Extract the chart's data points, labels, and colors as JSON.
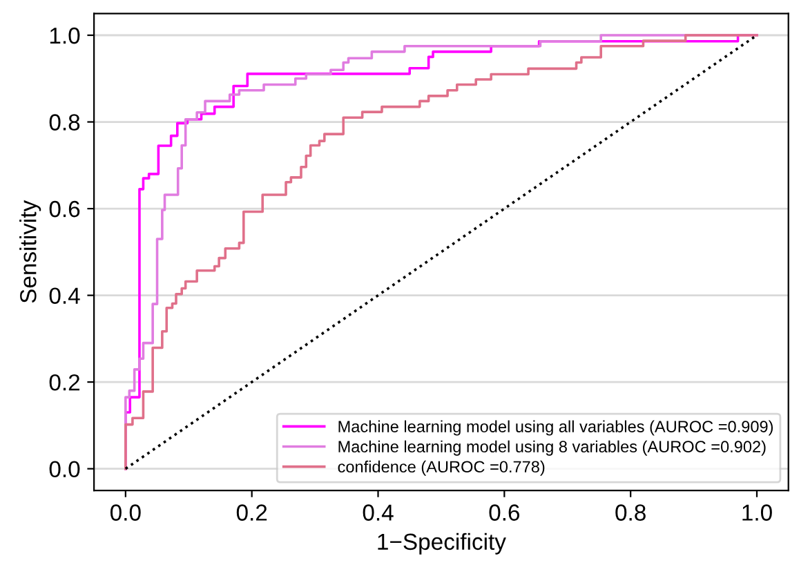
{
  "chart_data": {
    "type": "step",
    "xlabel": "1−Specificity",
    "ylabel": "Sensitivity",
    "xlim": [
      -0.05,
      1.05
    ],
    "ylim": [
      -0.05,
      1.05
    ],
    "xticks": [
      {
        "value": 0,
        "label": "0.0"
      },
      0.2,
      0.4,
      0.6,
      0.8,
      {
        "value": 1,
        "label": "1.0"
      }
    ],
    "yticks": [
      {
        "value": 0,
        "label": "0.0"
      },
      0.2,
      0.4,
      0.6,
      0.8,
      {
        "value": 1,
        "label": "1.0"
      }
    ],
    "grid": "y",
    "legend": "bottom right",
    "series": [
      {
        "name": "Machine learning model using all variables (AUROC =0.909)",
        "color": "#ff00ff",
        "x": [
          0,
          0,
          0.007,
          0.022,
          0.028,
          0.037,
          0.052,
          0.072,
          0.082,
          0.098,
          0.12,
          0.141,
          0.171,
          0.193,
          0.45,
          0.48,
          0.487,
          0.579,
          0.655,
          0.97,
          1.0
        ],
        "values": [
          0,
          0.13,
          0.165,
          0.645,
          0.67,
          0.68,
          0.745,
          0.768,
          0.797,
          0.806,
          0.819,
          0.835,
          0.883,
          0.911,
          0.924,
          0.95,
          0.962,
          0.975,
          0.986,
          1.0,
          1.0
        ]
      },
      {
        "name": "Machine learning model using 8 variables (AUROC =0.902)",
        "color": "#e07ce0",
        "x": [
          0,
          0,
          0.006,
          0.014,
          0.022,
          0.028,
          0.043,
          0.05,
          0.058,
          0.062,
          0.083,
          0.089,
          0.095,
          0.113,
          0.126,
          0.165,
          0.18,
          0.219,
          0.269,
          0.286,
          0.325,
          0.345,
          0.353,
          0.39,
          0.442,
          0.657,
          0.753,
          1.0
        ],
        "values": [
          0,
          0.165,
          0.18,
          0.229,
          0.254,
          0.29,
          0.38,
          0.53,
          0.597,
          0.632,
          0.693,
          0.746,
          0.806,
          0.822,
          0.848,
          0.863,
          0.873,
          0.886,
          0.9,
          0.91,
          0.92,
          0.937,
          0.947,
          0.962,
          0.975,
          0.986,
          1.0,
          1.0
        ]
      },
      {
        "name": "confidence (AUROC =0.778)",
        "color": "#e0708a",
        "x": [
          0,
          0,
          0.011,
          0.028,
          0.043,
          0.058,
          0.065,
          0.074,
          0.08,
          0.089,
          0.095,
          0.113,
          0.141,
          0.148,
          0.158,
          0.18,
          0.187,
          0.217,
          0.254,
          0.262,
          0.278,
          0.286,
          0.293,
          0.307,
          0.315,
          0.345,
          0.375,
          0.406,
          0.466,
          0.48,
          0.51,
          0.525,
          0.555,
          0.579,
          0.638,
          0.714,
          0.722,
          0.753,
          0.82,
          0.887,
          1.0
        ],
        "values": [
          0,
          0.102,
          0.117,
          0.178,
          0.279,
          0.317,
          0.371,
          0.381,
          0.403,
          0.416,
          0.432,
          0.457,
          0.467,
          0.486,
          0.508,
          0.521,
          0.593,
          0.632,
          0.661,
          0.672,
          0.696,
          0.722,
          0.746,
          0.756,
          0.772,
          0.81,
          0.823,
          0.835,
          0.848,
          0.86,
          0.873,
          0.886,
          0.898,
          0.91,
          0.923,
          0.937,
          0.949,
          0.975,
          0.987,
          1.0,
          1.0
        ]
      },
      {
        "type": "line",
        "color": "#000000",
        "line_style": "dotted",
        "x": [
          0,
          1
        ],
        "values": [
          0,
          1
        ]
      }
    ]
  }
}
